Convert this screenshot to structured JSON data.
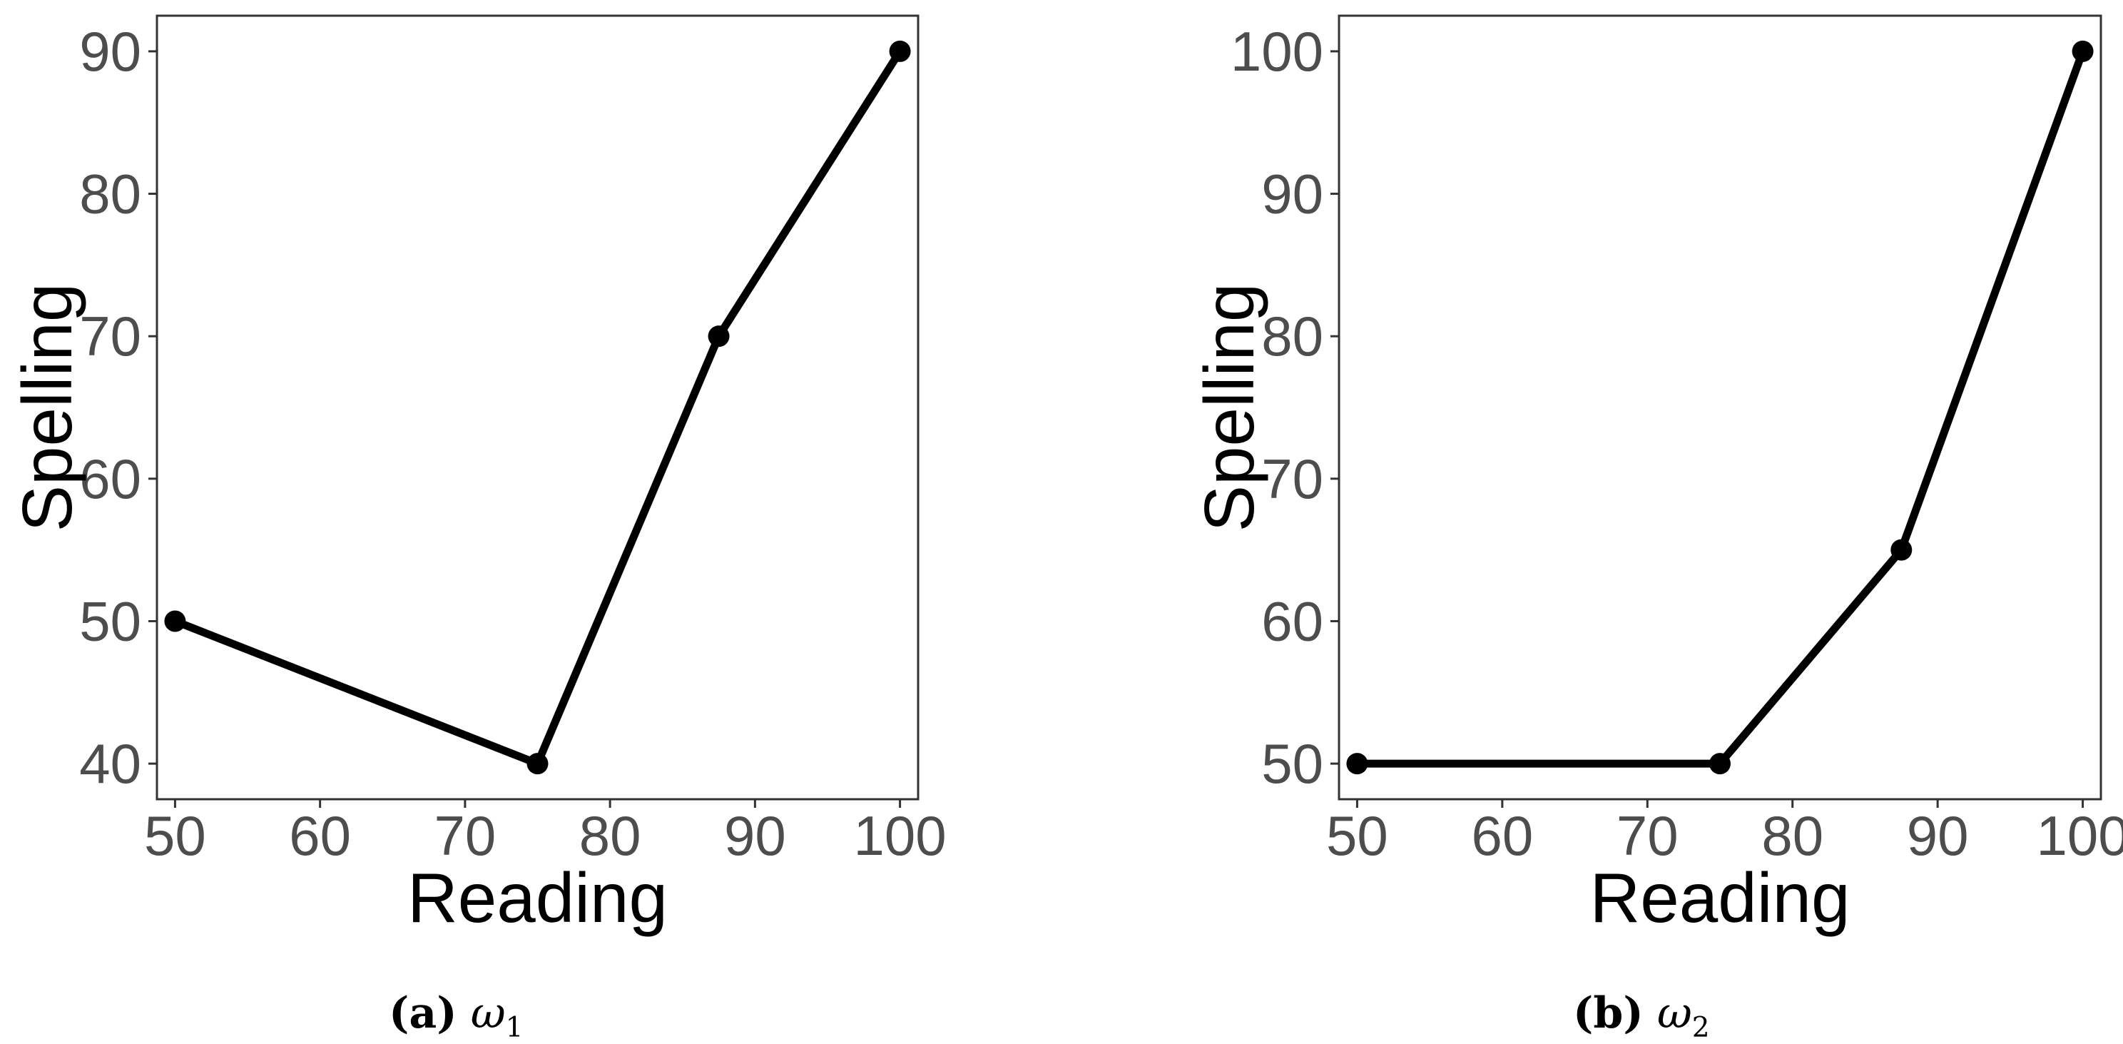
{
  "style": {
    "line_color": "#000000",
    "tick_label_color": "#4d4d4d",
    "axis_label_color": "#000000",
    "panel_border_color": "#333333",
    "background": "#ffffff"
  },
  "captions": [
    {
      "label": "(a)",
      "symbol": "ω",
      "subscript": "1"
    },
    {
      "label": "(b)",
      "symbol": "ω",
      "subscript": "2"
    }
  ],
  "chart_data": [
    {
      "type": "line",
      "xlabel": "Reading",
      "ylabel": "Spelling",
      "x": [
        50,
        75,
        87.5,
        100
      ],
      "y": [
        50,
        40,
        70,
        90
      ],
      "xlim": [
        48.75,
        101.25
      ],
      "ylim": [
        37.5,
        92.5
      ],
      "xticks": [
        50,
        60,
        70,
        80,
        90,
        100
      ],
      "yticks": [
        40,
        50,
        60,
        70,
        80,
        90
      ],
      "grid": false,
      "markers": true
    },
    {
      "type": "line",
      "xlabel": "Reading",
      "ylabel": "Spelling",
      "x": [
        50,
        75,
        87.5,
        100
      ],
      "y": [
        50,
        50,
        65,
        100
      ],
      "xlim": [
        48.75,
        101.25
      ],
      "ylim": [
        47.5,
        102.5
      ],
      "xticks": [
        50,
        60,
        70,
        80,
        90,
        100
      ],
      "yticks": [
        50,
        60,
        70,
        80,
        90,
        100
      ],
      "grid": false,
      "markers": true
    }
  ]
}
